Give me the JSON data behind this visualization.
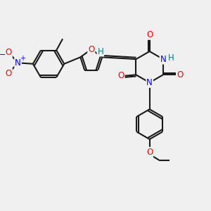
{
  "bg_color": "#f0f0f0",
  "bond_color": "#1a1a1a",
  "oxygen_color": "#ff0000",
  "nitrogen_color": "#0000ff",
  "h_color": "#008080",
  "plus_color": "#0000ff",
  "minus_color": "#0000ff",
  "line_width": 1.5,
  "font_size_atom": 8.5,
  "xlim": [
    0,
    10
  ],
  "ylim": [
    0,
    10
  ]
}
